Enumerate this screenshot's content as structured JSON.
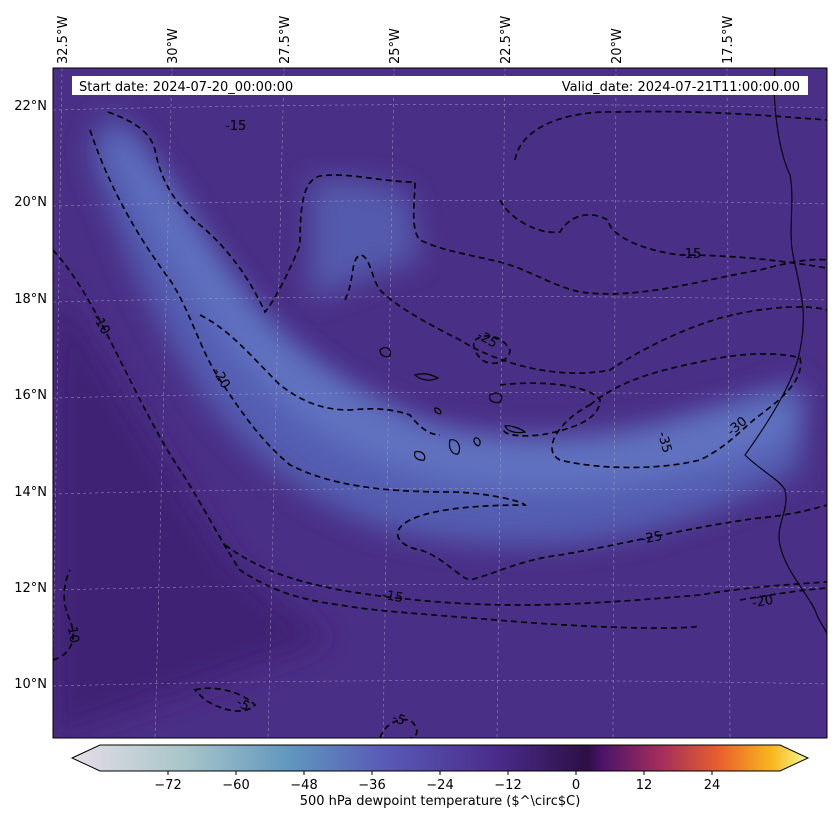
{
  "header": {
    "start_date": "Start date: 2024-07-20_00:00:00",
    "valid_date": "Valid_date: 2024-07-21T11:00:00.00"
  },
  "map": {
    "top_longitudes": [
      "32.5°W",
      "30°W",
      "27.5°W",
      "25°W",
      "22.5°W",
      "20°W",
      "17.5°W"
    ],
    "left_latitudes": [
      "22°N",
      "20°N",
      "18°N",
      "16°N",
      "14°N",
      "12°N",
      "10°N"
    ],
    "contour_labels": [
      "-15",
      "-15",
      "-10",
      "-20",
      "-25",
      "-35",
      "-30",
      "-25",
      "-15",
      "-20",
      "-10",
      "-5",
      "-5"
    ]
  },
  "colorbar": {
    "label": "500 hPa dewpoint temperature ($^\\circ$C)",
    "ticks": [
      "−72",
      "−60",
      "−48",
      "−36",
      "−24",
      "−12",
      "0",
      "12",
      "24"
    ],
    "tick_values": [
      -72,
      -60,
      -48,
      -36,
      -24,
      -12,
      0,
      12,
      24
    ],
    "range": [
      -84,
      36
    ]
  }
}
